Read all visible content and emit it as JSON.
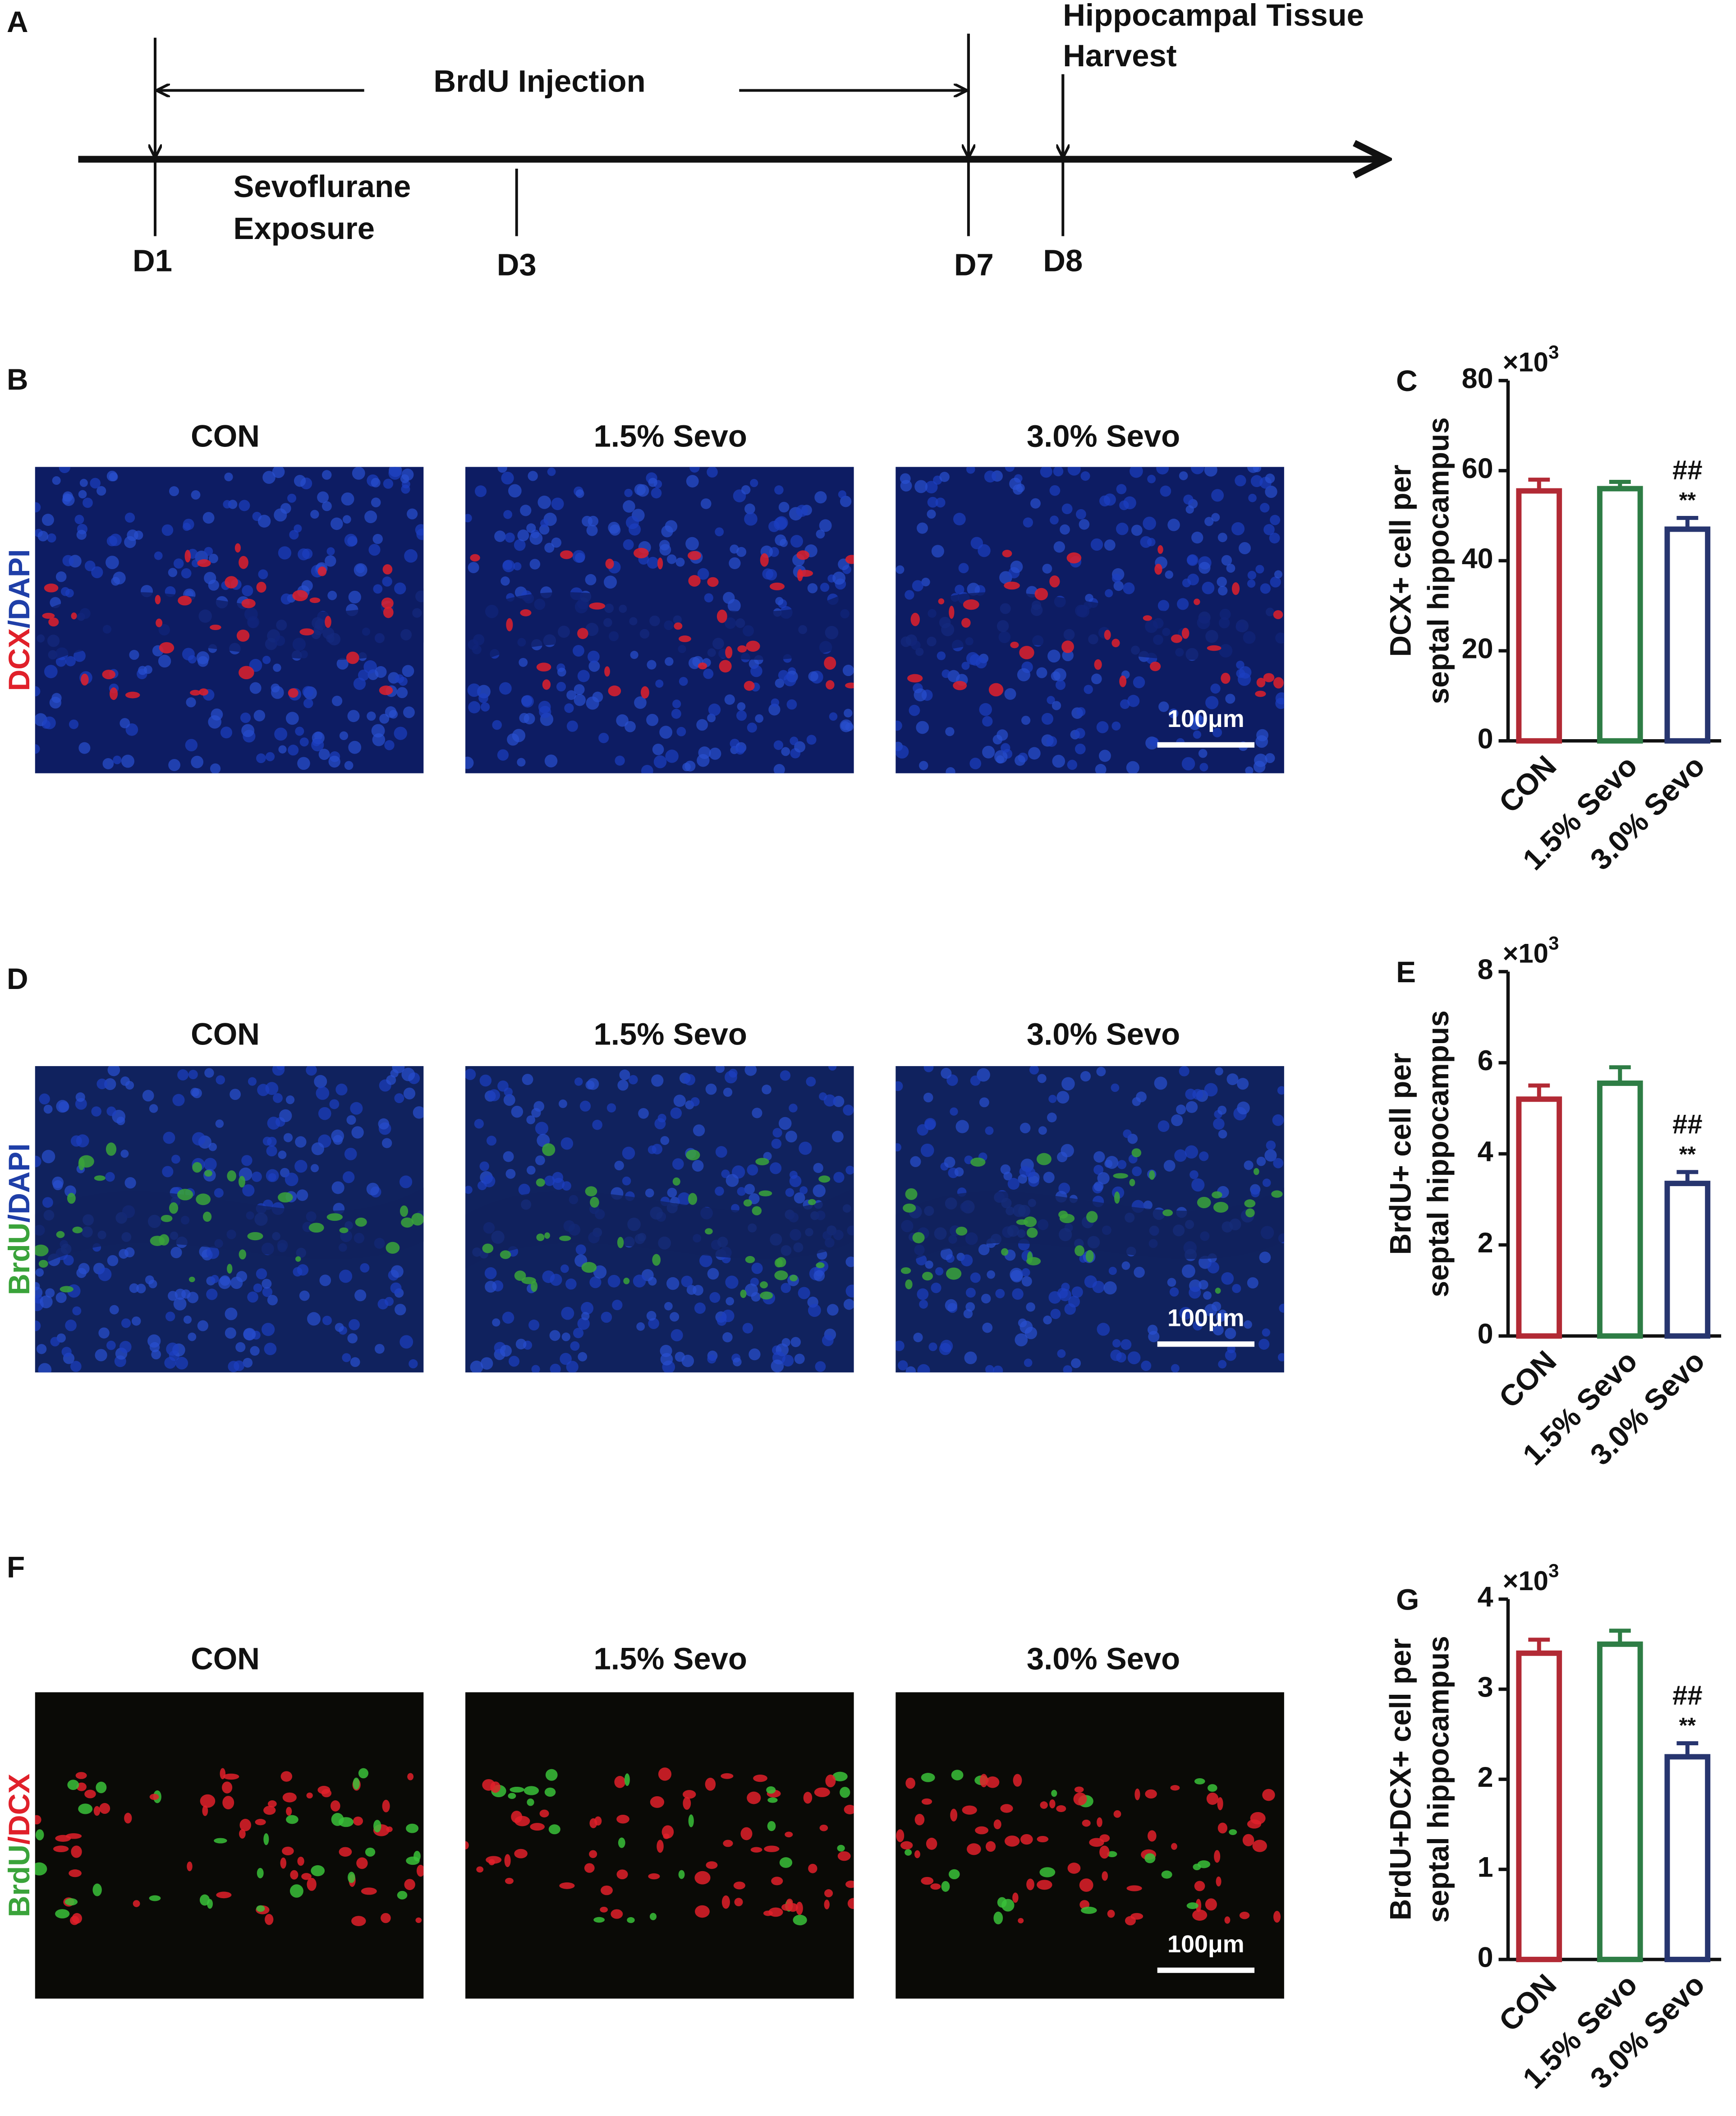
{
  "timeline": {
    "panel": "A",
    "days": [
      "D1",
      "D3",
      "D7",
      "D8"
    ],
    "injection": "BrdU Injection",
    "exposure": [
      "Sevoflurane",
      "Exposure"
    ],
    "harvest": [
      "Hippocampal Tissue",
      "Harvest"
    ]
  },
  "image_panels": [
    {
      "panel": "B",
      "stain": [
        {
          "text": "DCX",
          "color": "#e0202a"
        },
        {
          "text": "/DAPI",
          "color": "#1f3fa8"
        }
      ],
      "columns": [
        "CON",
        "1.5% Sevo",
        "3.0% Sevo"
      ],
      "scale_bar": "100μm"
    },
    {
      "panel": "D",
      "stain": [
        {
          "text": "BrdU",
          "color": "#3aa33a"
        },
        {
          "text": "/DAPI",
          "color": "#1f3fa8"
        }
      ],
      "columns": [
        "CON",
        "1.5% Sevo",
        "3.0% Sevo"
      ],
      "scale_bar": "100μm"
    },
    {
      "panel": "F",
      "stain": [
        {
          "text": "BrdU",
          "color": "#3aa33a"
        },
        {
          "text": "/DCX",
          "color": "#e0202a"
        }
      ],
      "columns": [
        "CON",
        "1.5% Sevo",
        "3.0% Sevo"
      ],
      "scale_bar": "100μm"
    }
  ],
  "chart_data": [
    {
      "type": "bar",
      "panel": "C",
      "ylabel": [
        "DCX+ cell per",
        "septal hippocampus"
      ],
      "scale_label": "×10",
      "scale_exponent": "3",
      "categories": [
        "CON",
        "1.5% Sevo",
        "3.0% Sevo"
      ],
      "values": [
        55.5,
        56,
        47
      ],
      "errors": [
        2.5,
        1.5,
        2.5
      ],
      "colors": [
        "#b22a35",
        "#2e7d45",
        "#27356f"
      ],
      "annotations": [
        [],
        [],
        [
          "##",
          "**"
        ]
      ],
      "ylim": [
        0,
        80
      ],
      "yticks": [
        0,
        20,
        40,
        60,
        80
      ]
    },
    {
      "type": "bar",
      "panel": "E",
      "ylabel": [
        "BrdU+ cell per",
        "septal hippocampus"
      ],
      "scale_label": "×10",
      "scale_exponent": "3",
      "categories": [
        "CON",
        "1.5% Sevo",
        "3.0% Sevo"
      ],
      "values": [
        5.2,
        5.55,
        3.35
      ],
      "errors": [
        0.3,
        0.35,
        0.25
      ],
      "colors": [
        "#b22a35",
        "#2e7d45",
        "#27356f"
      ],
      "annotations": [
        [],
        [],
        [
          "##",
          "**"
        ]
      ],
      "ylim": [
        0,
        8
      ],
      "yticks": [
        0,
        2,
        4,
        6,
        8
      ]
    },
    {
      "type": "bar",
      "panel": "G",
      "ylabel": [
        "BrdU+DCX+ cell per",
        "septal hippocampus"
      ],
      "scale_label": "×10",
      "scale_exponent": "3",
      "categories": [
        "CON",
        "1.5% Sevo",
        "3.0% Sevo"
      ],
      "values": [
        3.4,
        3.5,
        2.25
      ],
      "errors": [
        0.15,
        0.15,
        0.15
      ],
      "colors": [
        "#b22a35",
        "#2e7d45",
        "#27356f"
      ],
      "annotations": [
        [],
        [],
        [
          "##",
          "**"
        ]
      ],
      "ylim": [
        0,
        4
      ],
      "yticks": [
        0,
        1,
        2,
        3,
        4
      ]
    }
  ]
}
